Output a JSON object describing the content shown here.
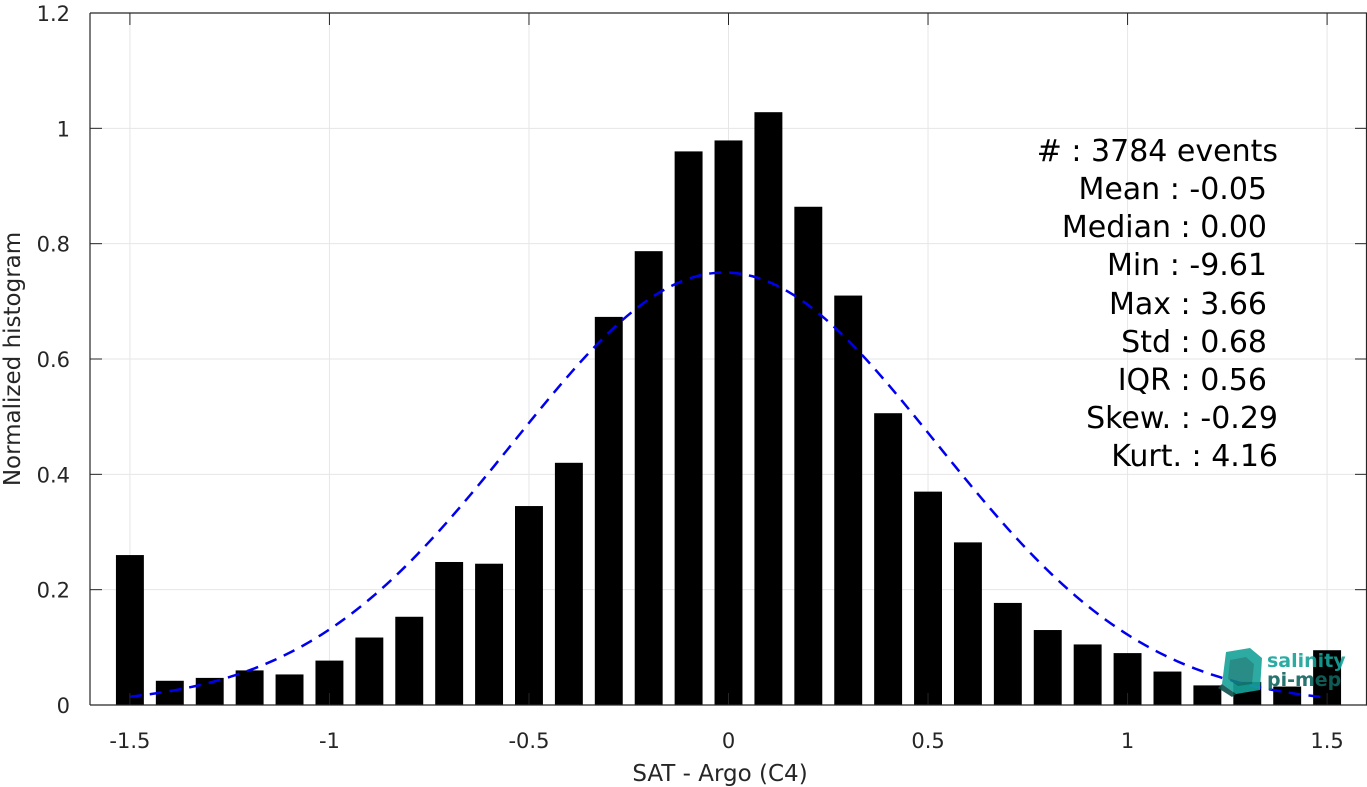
{
  "chart_data": {
    "type": "bar",
    "xlabel": "SAT - Argo (C4)",
    "ylabel": "Normalized histogram",
    "xlim": [
      -1.6,
      1.6
    ],
    "ylim": [
      0,
      1.2
    ],
    "xticks": [
      "-1.5",
      "-1",
      "-0.5",
      "0",
      "0.5",
      "1",
      "1.5"
    ],
    "xtick_values": [
      -1.5,
      -1,
      -0.5,
      0,
      0.5,
      1,
      1.5
    ],
    "yticks": [
      "0",
      "0.2",
      "0.4",
      "0.6",
      "0.8",
      "1",
      "1.2"
    ],
    "ytick_values": [
      0,
      0.2,
      0.4,
      0.6,
      0.8,
      1,
      1.2
    ],
    "grid": true,
    "bar_width": 0.07,
    "bar_color": "#000000",
    "x": [
      -1.5,
      -1.4,
      -1.3,
      -1.2,
      -1.1,
      -1.0,
      -0.9,
      -0.8,
      -0.7,
      -0.6,
      -0.5,
      -0.4,
      -0.3,
      -0.2,
      -0.1,
      0.0,
      0.1,
      0.2,
      0.3,
      0.4,
      0.5,
      0.6,
      0.7,
      0.8,
      0.9,
      1.0,
      1.1,
      1.2,
      1.3,
      1.4,
      1.5
    ],
    "values": [
      0.26,
      0.042,
      0.047,
      0.06,
      0.053,
      0.077,
      0.117,
      0.153,
      0.248,
      0.245,
      0.345,
      0.42,
      0.673,
      0.787,
      0.96,
      0.979,
      1.028,
      0.864,
      0.71,
      0.506,
      0.37,
      0.282,
      0.177,
      0.13,
      0.105,
      0.09,
      0.058,
      0.034,
      0.04,
      0.032,
      0.095
    ],
    "fit": {
      "type": "gaussian",
      "mean": -0.01,
      "std": 0.53,
      "peak": 0.75,
      "x_range": [
        -1.5,
        1.5
      ],
      "color": "#0000ee",
      "style": "dashed"
    }
  },
  "stats": [
    {
      "label": "#  : 3784 events"
    },
    {
      "label": "Mean : -0.05"
    },
    {
      "label": "Median : 0.00"
    },
    {
      "label": "Min : -9.61"
    },
    {
      "label": "Max : 3.66"
    },
    {
      "label": "Std : 0.68"
    },
    {
      "label": "IQR : 0.56"
    },
    {
      "label": "Skew. : -0.29"
    },
    {
      "label": "Kurt. : 4.16"
    }
  ],
  "logo": {
    "line1": "salinity",
    "line2": "pi-mep",
    "colors": [
      "#17a39a",
      "#10655f"
    ]
  }
}
